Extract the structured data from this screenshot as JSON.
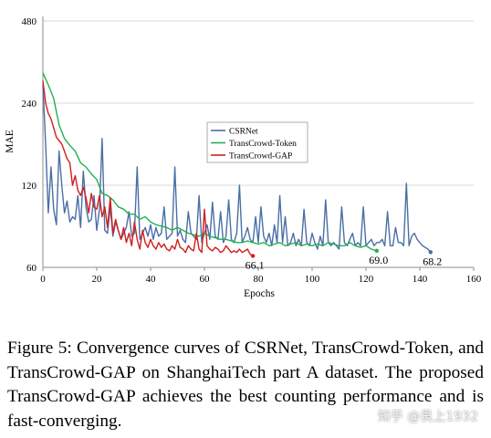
{
  "chart_data": {
    "type": "line",
    "xlabel": "Epochs",
    "ylabel": "MAE",
    "xlim": [
      0,
      160
    ],
    "ylim": [
      60,
      480
    ],
    "xticks": [
      "0",
      "20",
      "40",
      "60",
      "80",
      "100",
      "120",
      "140",
      "160"
    ],
    "yticks": [
      "60",
      "120",
      "240",
      "480"
    ],
    "y_scale": "log",
    "grid": "horizontal",
    "legend_position": "center-left",
    "series": [
      {
        "name": "CSRNet",
        "color": "#4a6fa5",
        "end_label": "68.2",
        "x": [
          0,
          1,
          2,
          3,
          4,
          5,
          6,
          7,
          8,
          9,
          10,
          11,
          12,
          13,
          14,
          15,
          16,
          17,
          18,
          19,
          20,
          21,
          22,
          23,
          24,
          25,
          26,
          27,
          28,
          29,
          30,
          31,
          32,
          33,
          34,
          35,
          36,
          37,
          38,
          39,
          40,
          41,
          42,
          43,
          44,
          45,
          46,
          47,
          48,
          49,
          50,
          51,
          52,
          53,
          54,
          55,
          56,
          57,
          58,
          59,
          60,
          61,
          62,
          63,
          64,
          65,
          66,
          67,
          68,
          69,
          70,
          71,
          72,
          73,
          74,
          75,
          76,
          77,
          78,
          79,
          80,
          81,
          82,
          83,
          84,
          85,
          86,
          87,
          88,
          89,
          90,
          91,
          92,
          93,
          94,
          95,
          96,
          97,
          98,
          99,
          100,
          101,
          102,
          103,
          104,
          105,
          106,
          107,
          108,
          109,
          110,
          111,
          112,
          113,
          114,
          115,
          116,
          117,
          118,
          119,
          120,
          121,
          122,
          123,
          124,
          125,
          126,
          127,
          128,
          129,
          130,
          131,
          132,
          133,
          134,
          135,
          136,
          137,
          138,
          139,
          140,
          141,
          142,
          143,
          144
        ],
        "values": [
          280,
          170,
          95,
          140,
          98,
          86,
          160,
          120,
          95,
          105,
          88,
          92,
          90,
          110,
          84,
          135,
          100,
          88,
          90,
          110,
          82,
          98,
          178,
          82,
          80,
          100,
          78,
          88,
          82,
          76,
          80,
          84,
          96,
          78,
          80,
          140,
          76,
          80,
          84,
          78,
          86,
          76,
          84,
          78,
          80,
          100,
          76,
          78,
          80,
          140,
          78,
          82,
          76,
          74,
          96,
          80,
          78,
          76,
          110,
          74,
          80,
          86,
          76,
          104,
          78,
          76,
          96,
          74,
          78,
          106,
          76,
          74,
          80,
          120,
          74,
          78,
          84,
          76,
          74,
          92,
          74,
          100,
          78,
          74,
          80,
          72,
          86,
          74,
          110,
          74,
          92,
          72,
          74,
          80,
          72,
          76,
          72,
          98,
          74,
          72,
          80,
          74,
          70,
          78,
          72,
          106,
          74,
          72,
          74,
          72,
          70,
          100,
          74,
          72,
          76,
          80,
          72,
          74,
          72,
          100,
          72,
          74,
          76,
          72,
          74,
          74,
          76,
          72,
          96,
          72,
          72,
          84,
          74,
          74,
          72,
          122,
          72,
          78,
          80,
          76,
          74,
          72,
          71,
          70,
          68.2
        ]
      },
      {
        "name": "TransCrowd-Token",
        "color": "#22b050",
        "end_label": "69.0",
        "x": [
          0,
          2,
          4,
          6,
          8,
          10,
          12,
          14,
          16,
          18,
          20,
          22,
          24,
          26,
          28,
          30,
          32,
          34,
          36,
          38,
          40,
          42,
          44,
          46,
          48,
          50,
          52,
          54,
          56,
          58,
          60,
          62,
          64,
          66,
          68,
          70,
          72,
          74,
          76,
          78,
          80,
          82,
          84,
          86,
          88,
          90,
          92,
          94,
          96,
          98,
          100,
          102,
          104,
          106,
          108,
          110,
          112,
          114,
          116,
          118,
          120,
          122,
          124
        ],
        "values": [
          310,
          280,
          250,
          200,
          178,
          168,
          160,
          145,
          140,
          132,
          126,
          112,
          110,
          106,
          100,
          98,
          94,
          94,
          90,
          92,
          88,
          86,
          85,
          84,
          82,
          84,
          82,
          80,
          79,
          78,
          80,
          78,
          77,
          76,
          76,
          75,
          74,
          74,
          75,
          74,
          73,
          74,
          72,
          73,
          74,
          72,
          73,
          74,
          72,
          73,
          72,
          73,
          72,
          74,
          73,
          72,
          72,
          74,
          72,
          71,
          72,
          70,
          69
        ]
      },
      {
        "name": "TransCrowd-GAP",
        "color": "#d21e1e",
        "end_label": "66.1",
        "x": [
          0,
          1,
          2,
          3,
          4,
          5,
          6,
          7,
          8,
          9,
          10,
          11,
          12,
          13,
          14,
          15,
          16,
          17,
          18,
          19,
          20,
          21,
          22,
          23,
          24,
          25,
          26,
          27,
          28,
          29,
          30,
          31,
          32,
          33,
          34,
          35,
          36,
          37,
          38,
          39,
          40,
          41,
          42,
          43,
          44,
          45,
          46,
          47,
          48,
          49,
          50,
          51,
          52,
          53,
          54,
          55,
          56,
          57,
          58,
          59,
          60,
          61,
          62,
          63,
          64,
          65,
          66,
          67,
          68,
          69,
          70,
          71,
          72,
          73,
          74,
          75,
          76,
          77,
          78
        ],
        "values": [
          290,
          240,
          220,
          210,
          195,
          180,
          175,
          170,
          160,
          150,
          145,
          120,
          130,
          115,
          110,
          118,
          108,
          95,
          112,
          100,
          98,
          110,
          92,
          100,
          84,
          108,
          80,
          90,
          82,
          76,
          84,
          74,
          80,
          72,
          88,
          76,
          70,
          82,
          74,
          71,
          76,
          72,
          70,
          74,
          71,
          73,
          70,
          69,
          72,
          70,
          76,
          71,
          70,
          68,
          72,
          70,
          69,
          80,
          70,
          68,
          98,
          72,
          70,
          69,
          71,
          70,
          68,
          69,
          72,
          70,
          68,
          69,
          68,
          70,
          68,
          69,
          70,
          67,
          66.1
        ]
      }
    ]
  },
  "caption": {
    "text": "Figure 5: Convergence curves of CSRNet, TransCrowd-Token, and TransCrowd-GAP on ShanghaiTech part A dataset. The proposed TransCrowd-GAP achieves the best counting performance and is fast-converging."
  },
  "watermark": {
    "text": "知乎 @艮上1932"
  }
}
